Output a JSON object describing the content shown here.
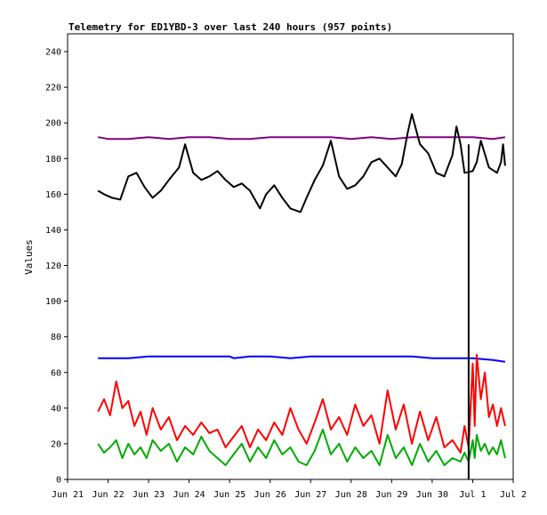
{
  "chart_data": {
    "type": "line",
    "title": "Telemetry for ED1YBD-3 over last 240 hours (957 points)",
    "xlabel": "",
    "ylabel": "Values",
    "xlim": [
      0,
      11
    ],
    "ylim": [
      0,
      250
    ],
    "x_ticks": [
      "Jun 21",
      "Jun 22",
      "Jun 23",
      "Jun 24",
      "Jun 25",
      "Jun 26",
      "Jun 27",
      "Jun 28",
      "Jun 29",
      "Jun 30",
      "Jul 1",
      "Jul 2"
    ],
    "y_ticks": [
      0,
      20,
      40,
      60,
      80,
      100,
      120,
      140,
      160,
      180,
      200,
      220,
      240
    ],
    "grid": false,
    "legend": "none",
    "series": [
      {
        "color": "#800080",
        "x": [
          0.75,
          1.0,
          1.5,
          2.0,
          2.5,
          3.0,
          3.5,
          4.0,
          4.5,
          5.0,
          5.5,
          6.0,
          6.5,
          7.0,
          7.5,
          8.0,
          8.5,
          9.0,
          9.5,
          10.0,
          10.5,
          10.8
        ],
        "y": [
          192,
          191,
          191,
          192,
          191,
          192,
          192,
          191,
          191,
          192,
          192,
          192,
          192,
          191,
          192,
          191,
          192,
          192,
          192,
          192,
          191,
          192
        ]
      },
      {
        "color": "#000000",
        "x": [
          0.75,
          0.9,
          1.1,
          1.3,
          1.5,
          1.7,
          1.9,
          2.1,
          2.3,
          2.5,
          2.75,
          2.9,
          3.1,
          3.3,
          3.5,
          3.7,
          3.9,
          4.1,
          4.3,
          4.5,
          4.6,
          4.75,
          4.9,
          5.1,
          5.3,
          5.5,
          5.75,
          5.9,
          6.1,
          6.3,
          6.5,
          6.7,
          6.9,
          7.1,
          7.3,
          7.5,
          7.7,
          7.9,
          8.1,
          8.25,
          8.3,
          8.4,
          8.5,
          8.7,
          8.9,
          9.1,
          9.3,
          9.5,
          9.6,
          9.7,
          9.8,
          10.0,
          10.1,
          10.2,
          10.4,
          10.6,
          10.7,
          10.75,
          10.8
        ],
        "y": [
          162,
          160,
          158,
          157,
          170,
          172,
          164,
          158,
          162,
          168,
          175,
          188,
          172,
          168,
          170,
          173,
          168,
          164,
          166,
          162,
          158,
          152,
          160,
          165,
          158,
          152,
          150,
          158,
          168,
          176,
          190,
          170,
          163,
          165,
          170,
          178,
          180,
          175,
          170,
          177,
          183,
          195,
          205,
          188,
          183,
          172,
          170,
          182,
          198,
          188,
          172,
          173,
          178,
          190,
          175,
          172,
          178,
          188,
          176
        ]
      },
      {
        "color": "#0000ff",
        "x": [
          0.75,
          1.5,
          2.0,
          2.5,
          3.0,
          3.5,
          4.0,
          4.1,
          4.5,
          5.0,
          5.5,
          6.0,
          6.5,
          7.0,
          7.5,
          8.0,
          8.5,
          9.0,
          9.5,
          10.0,
          10.5,
          10.8
        ],
        "y": [
          68,
          68,
          69,
          69,
          69,
          69,
          69,
          68,
          69,
          69,
          68,
          69,
          69,
          69,
          69,
          69,
          69,
          68,
          68,
          68,
          67,
          66
        ]
      },
      {
        "color": "#ff0000",
        "x": [
          0.75,
          0.9,
          1.05,
          1.2,
          1.35,
          1.5,
          1.65,
          1.8,
          1.95,
          2.1,
          2.3,
          2.5,
          2.7,
          2.9,
          3.1,
          3.3,
          3.5,
          3.7,
          3.9,
          4.1,
          4.3,
          4.5,
          4.7,
          4.9,
          5.1,
          5.3,
          5.5,
          5.7,
          5.9,
          6.1,
          6.3,
          6.5,
          6.7,
          6.9,
          7.1,
          7.3,
          7.5,
          7.7,
          7.9,
          8.1,
          8.3,
          8.5,
          8.7,
          8.9,
          9.1,
          9.3,
          9.5,
          9.7,
          9.8,
          9.9,
          10.0,
          10.05,
          10.1,
          10.2,
          10.3,
          10.4,
          10.5,
          10.6,
          10.7,
          10.8
        ],
        "y": [
          38,
          45,
          36,
          55,
          40,
          44,
          30,
          38,
          25,
          40,
          28,
          35,
          22,
          30,
          25,
          32,
          26,
          28,
          18,
          24,
          30,
          18,
          28,
          22,
          32,
          25,
          40,
          28,
          20,
          32,
          45,
          28,
          35,
          25,
          42,
          30,
          36,
          20,
          50,
          28,
          42,
          20,
          38,
          22,
          35,
          18,
          22,
          15,
          30,
          18,
          65,
          30,
          70,
          45,
          60,
          35,
          42,
          30,
          40,
          30
        ]
      },
      {
        "color": "#00aa00",
        "x": [
          0.75,
          0.9,
          1.05,
          1.2,
          1.35,
          1.5,
          1.65,
          1.8,
          1.95,
          2.1,
          2.3,
          2.5,
          2.7,
          2.9,
          3.1,
          3.3,
          3.5,
          3.7,
          3.9,
          4.1,
          4.3,
          4.5,
          4.7,
          4.9,
          5.1,
          5.3,
          5.5,
          5.7,
          5.9,
          6.1,
          6.3,
          6.5,
          6.7,
          6.9,
          7.1,
          7.3,
          7.5,
          7.7,
          7.9,
          8.1,
          8.3,
          8.5,
          8.7,
          8.9,
          9.1,
          9.3,
          9.5,
          9.7,
          9.8,
          9.9,
          10.0,
          10.05,
          10.1,
          10.2,
          10.3,
          10.4,
          10.5,
          10.6,
          10.7,
          10.8
        ],
        "y": [
          20,
          15,
          18,
          22,
          12,
          20,
          14,
          18,
          12,
          22,
          16,
          20,
          10,
          18,
          14,
          24,
          16,
          12,
          8,
          14,
          20,
          10,
          18,
          12,
          22,
          14,
          18,
          10,
          8,
          16,
          28,
          14,
          20,
          10,
          18,
          12,
          16,
          8,
          25,
          12,
          18,
          8,
          20,
          10,
          16,
          8,
          12,
          10,
          15,
          10,
          22,
          12,
          25,
          16,
          20,
          14,
          18,
          14,
          22,
          12
        ]
      }
    ],
    "annotations": [
      {
        "type": "vertical-line",
        "x": 9.9,
        "from": 0,
        "to": 188,
        "color": "#000000"
      }
    ]
  }
}
